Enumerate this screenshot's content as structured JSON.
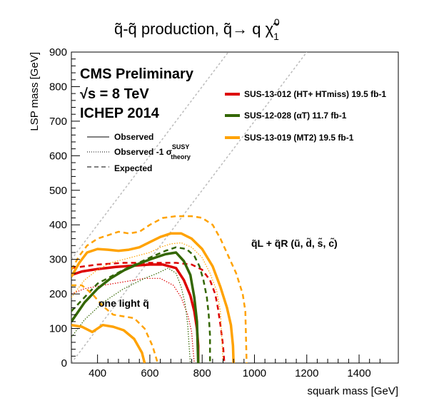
{
  "chart_data": {
    "type": "line",
    "title": "q̃-q̃ production,  q̃→ q χ̃",
    "title_sup": "0",
    "title_sub": "1",
    "xlabel": "squark mass [GeV]",
    "ylabel": "LSP mass [GeV]",
    "xlim": [
      300,
      1550
    ],
    "ylim": [
      0,
      900
    ],
    "xticks": [
      400,
      600,
      800,
      1000,
      1200,
      1400
    ],
    "yticks": [
      0,
      100,
      200,
      300,
      400,
      500,
      600,
      700,
      800,
      900
    ],
    "grid": false,
    "legend_position": "top-right",
    "annotations": {
      "cms": "CMS Preliminary",
      "energy": "√s = 8 TeV",
      "conference": "ICHEP 2014",
      "observed": "Observed",
      "observed_minus": "Observed -1 σ",
      "observed_minus_sup": "SUSY",
      "observed_minus_sub": "theory",
      "expected": "Expected",
      "one_light": "one light q̃",
      "region": "q̃L + q̃R (ũ, d̃, s̃, c̃)"
    },
    "diagonals": [
      {
        "x": [
          300,
          1000
        ],
        "y": [
          300,
          1000
        ]
      },
      {
        "x": [
          300,
          1200
        ],
        "y": [
          0,
          900
        ]
      }
    ],
    "series": [
      {
        "name": "SUS-13-012 (HT+ HTmiss) 19.5 fb-1",
        "color": "#dd0000",
        "observed": {
          "x": [
            300,
            340,
            400,
            470,
            540,
            600,
            650,
            700,
            730,
            755,
            770,
            780,
            785,
            785
          ],
          "y": [
            255,
            265,
            272,
            278,
            282,
            285,
            285,
            275,
            240,
            195,
            150,
            100,
            50,
            0
          ]
        },
        "observed_minus": {
          "x": [
            300,
            350,
            420,
            500,
            580,
            640,
            690,
            720,
            745,
            760,
            765,
            770
          ],
          "y": [
            200,
            215,
            225,
            235,
            245,
            245,
            225,
            190,
            140,
            90,
            40,
            0
          ]
        },
        "expected": {
          "x": [
            300,
            400,
            500,
            600,
            700,
            760,
            800,
            830,
            850,
            860,
            870,
            880,
            885
          ],
          "y": [
            275,
            285,
            290,
            290,
            290,
            285,
            270,
            240,
            200,
            160,
            110,
            50,
            0
          ]
        }
      },
      {
        "name": "SUS-12-028 (αT) 11.7 fb-1",
        "color": "#336600",
        "observed": {
          "x": [
            300,
            350,
            400,
            450,
            500,
            550,
            600,
            660,
            700,
            730,
            755,
            770,
            780,
            785
          ],
          "y": [
            120,
            175,
            215,
            245,
            268,
            285,
            300,
            315,
            320,
            295,
            255,
            190,
            120,
            0
          ]
        },
        "observed_minus": {
          "x": [
            300,
            350,
            420,
            500,
            580,
            630,
            670,
            700,
            720,
            735,
            745,
            750,
            755
          ],
          "y": [
            75,
            125,
            175,
            215,
            245,
            260,
            275,
            260,
            220,
            170,
            110,
            50,
            0
          ]
        },
        "expected": {
          "x": [
            300,
            400,
            500,
            600,
            660,
            700,
            740,
            770,
            790,
            805,
            818,
            825,
            830,
            830
          ],
          "y": [
            150,
            230,
            270,
            305,
            325,
            335,
            330,
            310,
            280,
            240,
            190,
            140,
            80,
            0
          ]
        }
      },
      {
        "name": "SUS-13-019 (MT2) 19.5 fb-1",
        "color": "#ffa200",
        "observed": {
          "x": [
            300,
            330,
            360,
            400,
            440,
            480,
            520,
            560,
            600,
            640,
            680,
            720,
            760,
            800,
            840,
            870,
            895,
            910,
            918,
            920
          ],
          "y": [
            250,
            290,
            320,
            330,
            328,
            325,
            328,
            335,
            350,
            365,
            375,
            375,
            360,
            330,
            280,
            220,
            160,
            110,
            50,
            0
          ]
        },
        "observed_minus": {
          "x": [
            300,
            350,
            400,
            450,
            500,
            550,
            600,
            640,
            680,
            720,
            760,
            800,
            830,
            855,
            870,
            880
          ],
          "y": [
            190,
            240,
            270,
            290,
            300,
            310,
            320,
            335,
            345,
            348,
            335,
            305,
            260,
            210,
            150,
            0
          ]
        },
        "expected": {
          "x": [
            300,
            330,
            360,
            400,
            440,
            480,
            520,
            560,
            600,
            650,
            700,
            760,
            800,
            840,
            870,
            900,
            930,
            955,
            965,
            970
          ],
          "y": [
            270,
            310,
            340,
            360,
            370,
            380,
            375,
            380,
            400,
            420,
            425,
            425,
            420,
            400,
            360,
            310,
            260,
            200,
            150,
            0
          ]
        },
        "one_light_observed": {
          "x": [
            300,
            340,
            380,
            420,
            460,
            500,
            540,
            570,
            580
          ],
          "y": [
            110,
            105,
            90,
            110,
            105,
            95,
            70,
            30,
            0
          ]
        },
        "one_light_expected": {
          "x": [
            300,
            340,
            380,
            420,
            460,
            500,
            540,
            580,
            610,
            630
          ],
          "y": [
            225,
            225,
            200,
            165,
            140,
            135,
            130,
            100,
            50,
            0
          ]
        }
      }
    ]
  }
}
